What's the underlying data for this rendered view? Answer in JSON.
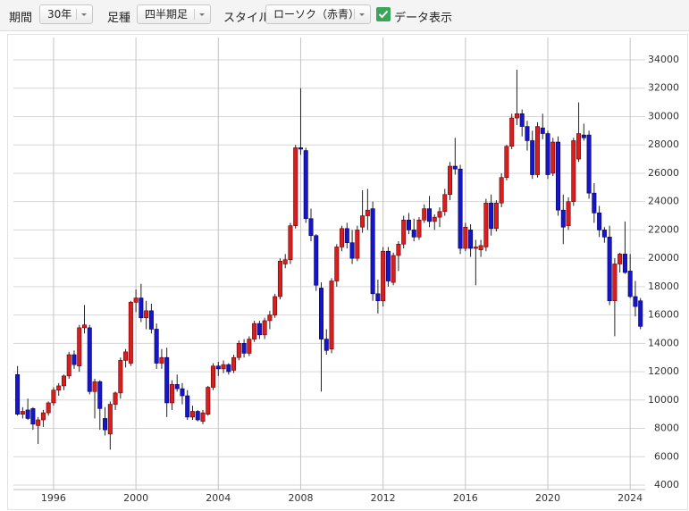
{
  "toolbar": {
    "period_label": "期間",
    "period_value": "30年",
    "bar_label": "足種",
    "bar_value": "四半期足",
    "style_label": "スタイル",
    "style_value": "ローソク（赤青）",
    "data_label": "データ表示"
  },
  "chart_data": {
    "type": "candlestick",
    "up_color": "#d81e1e",
    "down_color": "#1616c8",
    "grid": true,
    "xlim": [
      1994.05,
      2024.73
    ],
    "xticks": [
      1996,
      2000,
      2004,
      2008,
      2012,
      2016,
      2020,
      2024
    ],
    "ylim": [
      3685,
      35576
    ],
    "yticks": [
      4000,
      6000,
      8000,
      10000,
      12000,
      14000,
      16000,
      18000,
      20000,
      22000,
      24000,
      26000,
      28000,
      30000,
      32000,
      34000
    ],
    "x": [
      1994.25,
      1994.5,
      1994.75,
      1995,
      1995.25,
      1995.5,
      1995.75,
      1996,
      1996.25,
      1996.5,
      1996.75,
      1997,
      1997.25,
      1997.5,
      1997.75,
      1998,
      1998.25,
      1998.5,
      1998.75,
      1999,
      1999.25,
      1999.5,
      1999.75,
      2000,
      2000.25,
      2000.5,
      2000.75,
      2001,
      2001.25,
      2001.5,
      2001.75,
      2002,
      2002.25,
      2002.5,
      2002.75,
      2003,
      2003.25,
      2003.5,
      2003.75,
      2004,
      2004.25,
      2004.5,
      2004.75,
      2005,
      2005.25,
      2005.5,
      2005.75,
      2006,
      2006.25,
      2006.5,
      2006.75,
      2007,
      2007.25,
      2007.5,
      2007.75,
      2008,
      2008.25,
      2008.5,
      2008.75,
      2009,
      2009.25,
      2009.5,
      2009.75,
      2010,
      2010.25,
      2010.5,
      2010.75,
      2011,
      2011.25,
      2011.5,
      2011.75,
      2012,
      2012.25,
      2012.5,
      2012.75,
      2013,
      2013.25,
      2013.5,
      2013.75,
      2014,
      2014.25,
      2014.5,
      2014.75,
      2015,
      2015.25,
      2015.5,
      2015.75,
      2016,
      2016.25,
      2016.5,
      2016.75,
      2017,
      2017.25,
      2017.5,
      2017.75,
      2018,
      2018.25,
      2018.5,
      2018.75,
      2019,
      2019.25,
      2019.5,
      2019.75,
      2020,
      2020.25,
      2020.5,
      2020.75,
      2021,
      2021.25,
      2021.5,
      2021.75,
      2022,
      2022.25,
      2022.5,
      2022.75,
      2023,
      2023.25,
      2023.5,
      2023.75,
      2024,
      2024.25,
      2024.5
    ],
    "open": [
      11800,
      9000,
      9300,
      9400,
      8200,
      8600,
      9100,
      9800,
      10700,
      11000,
      11700,
      13200,
      12400,
      15100,
      15100,
      10600,
      11300,
      8700,
      7600,
      9700,
      10500,
      12800,
      12600,
      16900,
      17200,
      15800,
      16300,
      15000,
      12600,
      13000,
      9800,
      11100,
      10800,
      10300,
      8800,
      9200,
      8500,
      9000,
      10900,
      12400,
      12200,
      12500,
      12100,
      13000,
      14000,
      13300,
      14300,
      15400,
      14600,
      15600,
      16000,
      17300,
      19600,
      19900,
      22300,
      27800,
      27600,
      22800,
      21600,
      17900,
      14300,
      13600,
      18400,
      20800,
      22100,
      21100,
      20000,
      22200,
      23000,
      23500,
      17500,
      17000,
      20500,
      18300,
      20200,
      21000,
      22700,
      22000,
      21500,
      22700,
      23500,
      22600,
      22900,
      23300,
      24500,
      26500,
      26300,
      20700,
      22000,
      20700,
      20600,
      20800,
      23900,
      22100,
      23900,
      25700,
      27900,
      29900,
      30200,
      29300,
      28300,
      25900,
      29200,
      28800,
      26000,
      28200,
      23400,
      22300,
      24000,
      27000,
      28700,
      28700,
      24600,
      23200,
      22000,
      21500,
      17000,
      19600,
      20300,
      19100,
      17300,
      17000
    ],
    "high": [
      12400,
      9500,
      10100,
      9500,
      8800,
      9300,
      9900,
      10900,
      11200,
      11800,
      13400,
      13500,
      15300,
      16700,
      15300,
      11500,
      11400,
      9500,
      9900,
      10600,
      13000,
      13600,
      17000,
      17800,
      18200,
      17000,
      16800,
      15400,
      13600,
      13700,
      11400,
      11800,
      11200,
      10700,
      9600,
      9300,
      9300,
      11000,
      12600,
      12700,
      12800,
      12600,
      13200,
      14200,
      14300,
      14500,
      15600,
      15600,
      15800,
      16300,
      17500,
      20000,
      20300,
      22500,
      28000,
      32000,
      27800,
      23500,
      21700,
      18300,
      15000,
      18600,
      21000,
      22300,
      22500,
      22000,
      22300,
      24800,
      24900,
      24000,
      18500,
      20800,
      20800,
      20400,
      21200,
      23000,
      23200,
      22800,
      22900,
      23800,
      24400,
      23100,
      23600,
      24900,
      26800,
      28500,
      26600,
      22500,
      22400,
      21300,
      21300,
      24200,
      24500,
      24100,
      26000,
      28000,
      30200,
      33300,
      30500,
      29700,
      29000,
      29600,
      30200,
      29000,
      28500,
      28600,
      24500,
      24300,
      28500,
      31000,
      29500,
      29000,
      25300,
      23700,
      22200,
      22300,
      20000,
      20400,
      22600,
      20300,
      18400,
      17200
    ],
    "low": [
      8900,
      8700,
      8600,
      7900,
      6900,
      8100,
      8900,
      9600,
      10300,
      10700,
      11500,
      12200,
      12000,
      14700,
      10400,
      8700,
      7900,
      7500,
      6500,
      9300,
      10100,
      12300,
      12400,
      16200,
      15500,
      15000,
      14700,
      12200,
      12200,
      8800,
      9300,
      10600,
      9700,
      8600,
      8600,
      8500,
      8300,
      8900,
      10700,
      11700,
      11900,
      11800,
      11900,
      12800,
      13000,
      13100,
      14100,
      14300,
      14300,
      15000,
      15800,
      17100,
      19300,
      19600,
      22100,
      27300,
      22500,
      21200,
      17700,
      10600,
      13200,
      13300,
      18000,
      20500,
      20700,
      19600,
      19800,
      21800,
      22000,
      17000,
      16100,
      16600,
      18000,
      18100,
      19100,
      20700,
      21700,
      21200,
      21300,
      22500,
      22200,
      22000,
      22200,
      23000,
      24100,
      25900,
      20300,
      20500,
      20100,
      18100,
      20100,
      20500,
      21600,
      21900,
      23600,
      25500,
      27700,
      29400,
      28600,
      27600,
      25600,
      25700,
      28400,
      25600,
      25800,
      23000,
      21000,
      22000,
      23700,
      26800,
      28300,
      24200,
      22500,
      21500,
      21100,
      16700,
      14500,
      19000,
      18900,
      17200,
      15900,
      15000
    ],
    "close": [
      9000,
      9200,
      8700,
      8300,
      8600,
      9100,
      9800,
      10700,
      11000,
      11700,
      13200,
      12500,
      15100,
      15300,
      10600,
      11300,
      9400,
      7900,
      9700,
      10500,
      12800,
      13400,
      16900,
      17200,
      15800,
      16300,
      15000,
      12600,
      13000,
      9800,
      11100,
      10800,
      10300,
      8800,
      9200,
      8600,
      9100,
      10900,
      12400,
      12200,
      12500,
      12000,
      13000,
      14000,
      13300,
      14300,
      15400,
      14600,
      15600,
      16000,
      17300,
      19800,
      19900,
      22300,
      27800,
      27700,
      22800,
      21600,
      18100,
      14300,
      13500,
      18400,
      20800,
      22100,
      21100,
      20000,
      22000,
      23000,
      23400,
      17500,
      17000,
      20500,
      18400,
      20200,
      21000,
      22700,
      22000,
      21500,
      22700,
      23500,
      22600,
      22900,
      23300,
      24500,
      26500,
      26300,
      20700,
      22200,
      20700,
      20800,
      20900,
      23900,
      22100,
      23900,
      25700,
      27900,
      29900,
      30200,
      29300,
      28300,
      25900,
      29300,
      28800,
      25900,
      28200,
      23400,
      22200,
      24000,
      28300,
      28800,
      28500,
      24600,
      23200,
      22000,
      21500,
      17000,
      19600,
      20300,
      19000,
      17300,
      16600,
      15200
    ]
  }
}
